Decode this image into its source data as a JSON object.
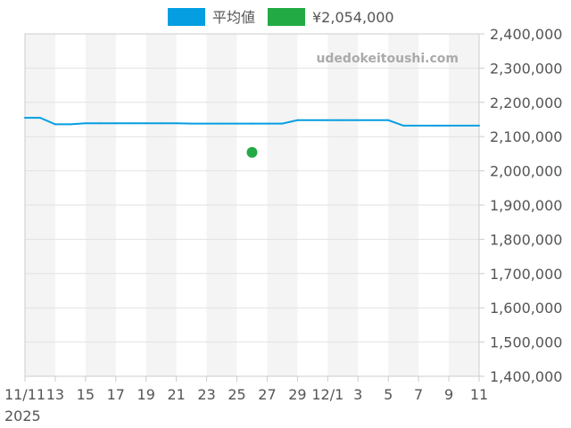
{
  "chart_data": {
    "type": "line",
    "watermark": "udedokeitoushi.com",
    "legend": {
      "position": "top-center",
      "items": [
        {
          "label": "平均値",
          "color": "#049ee1"
        },
        {
          "label": "¥2,054,000",
          "color": "#22aa44"
        }
      ]
    },
    "x_tick_labels": [
      "11/11",
      "13",
      "15",
      "17",
      "19",
      "21",
      "23",
      "25",
      "27",
      "29",
      "12/1",
      "3",
      "5",
      "7",
      "9",
      "11"
    ],
    "x_year_label": "2025",
    "x_dates": [
      "11/11",
      "11/12",
      "11/13",
      "11/14",
      "11/15",
      "11/16",
      "11/17",
      "11/18",
      "11/19",
      "11/20",
      "11/21",
      "11/22",
      "11/23",
      "11/24",
      "11/25",
      "11/26",
      "11/27",
      "11/28",
      "11/29",
      "11/30",
      "12/1",
      "12/2",
      "12/3",
      "12/4",
      "12/5",
      "12/6",
      "12/7",
      "12/8",
      "12/9",
      "12/10",
      "12/11"
    ],
    "ylim": [
      1400000,
      2400000
    ],
    "y_ticks": [
      1400000,
      1500000,
      1600000,
      1700000,
      1800000,
      1900000,
      2000000,
      2100000,
      2200000,
      2300000,
      2400000
    ],
    "y_tick_labels": [
      "1,400,000",
      "1,500,000",
      "1,600,000",
      "1,700,000",
      "1,800,000",
      "1,900,000",
      "2,000,000",
      "2,100,000",
      "2,200,000",
      "2,300,000",
      "2,400,000"
    ],
    "grid": true,
    "series": [
      {
        "name": "平均値",
        "type": "line",
        "color": "#049ee1",
        "values": [
          2155000,
          2155000,
          2136000,
          2136000,
          2139000,
          2139000,
          2139000,
          2139000,
          2139000,
          2139000,
          2139000,
          2138000,
          2138000,
          2138000,
          2138000,
          2138000,
          2138000,
          2138000,
          2148000,
          2148000,
          2148000,
          2148000,
          2148000,
          2148000,
          2148000,
          2132000,
          2132000,
          2132000,
          2132000,
          2132000,
          2132000
        ]
      },
      {
        "name": "¥2,054,000",
        "type": "scatter",
        "color": "#22aa44",
        "points": [
          {
            "x": "11/26",
            "y": 2054000
          }
        ]
      }
    ]
  }
}
